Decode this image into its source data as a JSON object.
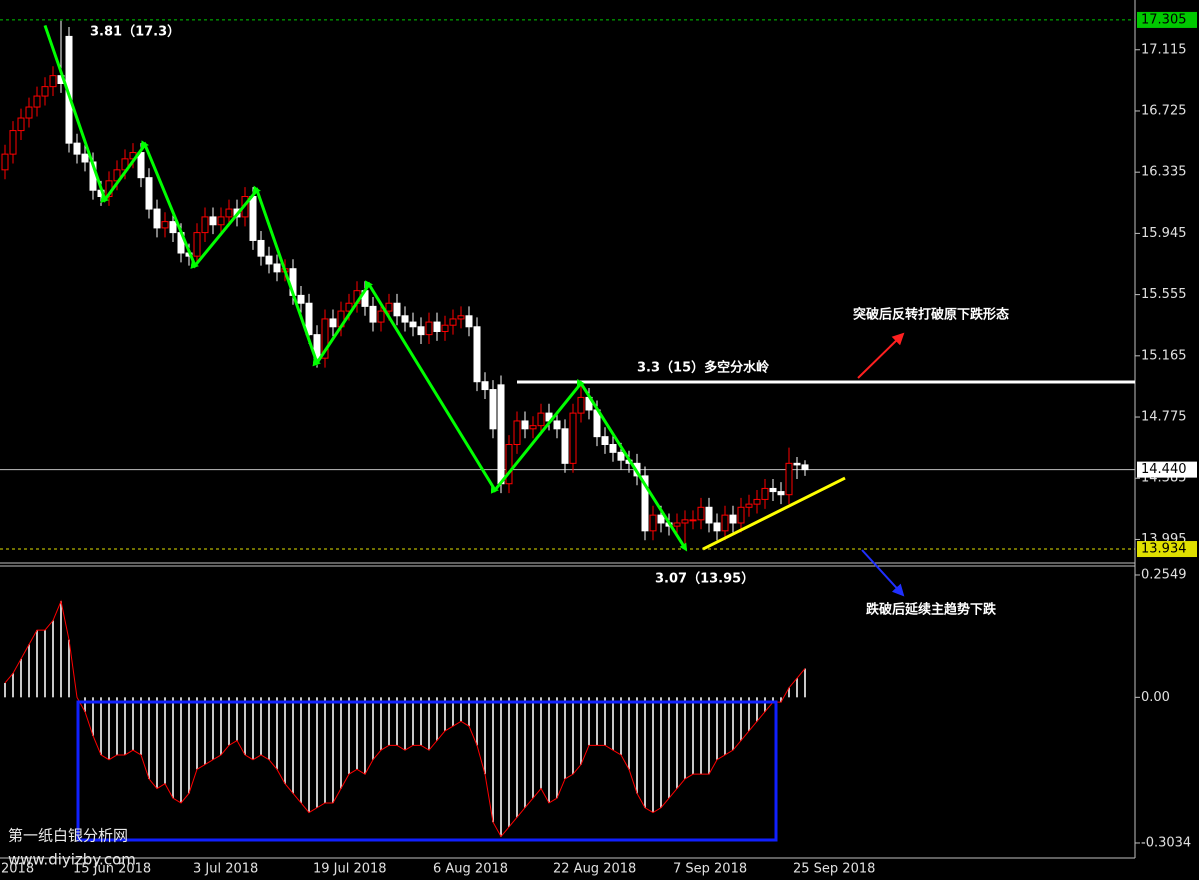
{
  "chart_data": [
    {
      "type": "candlestick",
      "categories": [
        "2018",
        null,
        null,
        null,
        null,
        null,
        null,
        null,
        null,
        "15 Jun 2018",
        null,
        null,
        null,
        null,
        null,
        null,
        null,
        null,
        null,
        null,
        null,
        null,
        null,
        null,
        "3 Jul 2018",
        null,
        null,
        null,
        null,
        null,
        null,
        null,
        null,
        null,
        null,
        null,
        null,
        null,
        null,
        "19 Jul 2018",
        null,
        null,
        null,
        null,
        null,
        null,
        null,
        null,
        null,
        null,
        null,
        null,
        null,
        null,
        "6 Aug 2018",
        null,
        null,
        null,
        null,
        null,
        null,
        null,
        null,
        null,
        null,
        null,
        null,
        null,
        null,
        "22 Aug 2018",
        null,
        null,
        null,
        null,
        null,
        null,
        null,
        null,
        null,
        null,
        null,
        null,
        null,
        null,
        "7 Sep 2018",
        null,
        null,
        null,
        null,
        null,
        null,
        null,
        null,
        null,
        null,
        null,
        null,
        null,
        null,
        "25 Sep 2018",
        null
      ],
      "open": [
        16.35,
        16.45,
        16.6,
        16.68,
        16.75,
        16.82,
        16.88,
        16.95,
        17.2,
        16.52,
        16.45,
        16.4,
        16.22,
        16.18,
        16.28,
        16.35,
        16.42,
        16.46,
        16.3,
        16.1,
        15.98,
        16.02,
        15.95,
        15.82,
        15.8,
        15.95,
        16.05,
        16.0,
        16.05,
        16.1,
        16.05,
        16.18,
        15.9,
        15.8,
        15.75,
        15.7,
        15.72,
        15.55,
        15.5,
        15.3,
        15.15,
        15.4,
        15.35,
        15.45,
        15.5,
        15.58,
        15.48,
        15.38,
        15.45,
        15.5,
        15.42,
        15.38,
        15.35,
        15.3,
        15.38,
        15.32,
        15.36,
        15.4,
        15.42,
        15.35,
        15.0,
        14.95,
        14.98,
        14.35,
        14.6,
        14.75,
        14.7,
        14.72,
        14.8,
        14.75,
        14.7,
        14.48,
        14.8,
        14.9,
        14.82,
        14.65,
        14.6,
        14.55,
        14.5,
        14.48,
        14.4,
        14.05,
        14.15,
        14.1,
        14.08,
        14.1,
        14.12,
        14.12,
        14.2,
        14.1,
        14.05,
        14.15,
        14.1,
        14.2,
        14.22,
        14.25,
        14.32,
        14.3,
        14.28,
        14.48,
        14.47
      ],
      "high": [
        16.51,
        16.66,
        16.74,
        16.81,
        16.88,
        16.94,
        17.01,
        17.3,
        17.26,
        16.58,
        16.51,
        16.46,
        16.28,
        16.34,
        16.41,
        16.48,
        16.52,
        16.52,
        16.36,
        16.16,
        16.08,
        16.08,
        16.01,
        15.88,
        16.01,
        16.11,
        16.11,
        16.11,
        16.16,
        16.16,
        16.24,
        16.24,
        15.96,
        15.86,
        15.81,
        15.78,
        15.78,
        15.61,
        15.56,
        15.36,
        15.46,
        15.46,
        15.51,
        15.56,
        15.64,
        15.64,
        15.54,
        15.51,
        15.56,
        15.56,
        15.48,
        15.44,
        15.41,
        15.44,
        15.44,
        15.42,
        15.46,
        15.48,
        15.48,
        15.41,
        15.06,
        15.01,
        15.04,
        14.66,
        14.81,
        14.81,
        14.78,
        14.86,
        14.86,
        14.81,
        14.76,
        14.86,
        14.99,
        14.96,
        14.88,
        14.71,
        14.66,
        14.61,
        14.56,
        14.54,
        14.46,
        14.21,
        14.21,
        14.16,
        14.16,
        14.18,
        14.18,
        14.26,
        14.26,
        14.16,
        14.21,
        14.21,
        14.26,
        14.28,
        14.31,
        14.38,
        14.38,
        14.36,
        14.58,
        14.52,
        14.5
      ],
      "low": [
        16.29,
        16.39,
        16.54,
        16.62,
        16.69,
        16.76,
        16.82,
        16.84,
        16.46,
        16.39,
        16.34,
        16.16,
        16.12,
        16.12,
        16.22,
        16.29,
        16.36,
        16.24,
        16.04,
        15.92,
        15.92,
        15.89,
        15.76,
        15.74,
        15.74,
        15.89,
        15.94,
        15.94,
        15.99,
        15.99,
        15.99,
        15.84,
        15.74,
        15.69,
        15.64,
        15.64,
        15.49,
        15.44,
        15.24,
        15.09,
        15.09,
        15.29,
        15.29,
        15.39,
        15.44,
        15.42,
        15.32,
        15.32,
        15.39,
        15.36,
        15.32,
        15.29,
        15.24,
        15.24,
        15.26,
        15.26,
        15.3,
        15.34,
        15.29,
        14.94,
        14.89,
        14.64,
        14.29,
        14.29,
        14.54,
        14.64,
        14.64,
        14.66,
        14.69,
        14.64,
        14.42,
        14.42,
        14.74,
        14.76,
        14.59,
        14.54,
        14.49,
        14.44,
        14.42,
        14.34,
        13.99,
        13.99,
        14.04,
        14.02,
        14.02,
        13.93,
        14.06,
        14.06,
        14.04,
        13.99,
        13.99,
        14.04,
        14.04,
        14.14,
        14.16,
        14.19,
        14.24,
        14.22,
        14.22,
        14.38,
        14.4
      ],
      "close": [
        16.45,
        16.6,
        16.68,
        16.75,
        16.82,
        16.88,
        16.95,
        16.9,
        16.52,
        16.45,
        16.4,
        16.22,
        16.18,
        16.28,
        16.35,
        16.42,
        16.46,
        16.3,
        16.1,
        15.98,
        16.02,
        15.95,
        15.82,
        15.8,
        15.95,
        16.05,
        16.0,
        16.05,
        16.1,
        16.05,
        16.18,
        15.9,
        15.8,
        15.75,
        15.7,
        15.72,
        15.55,
        15.5,
        15.3,
        15.15,
        15.4,
        15.35,
        15.45,
        15.5,
        15.58,
        15.48,
        15.38,
        15.45,
        15.5,
        15.42,
        15.38,
        15.35,
        15.3,
        15.38,
        15.32,
        15.36,
        15.4,
        15.42,
        15.35,
        15.0,
        14.95,
        14.7,
        14.35,
        14.6,
        14.75,
        14.7,
        14.72,
        14.8,
        14.75,
        14.7,
        14.48,
        14.8,
        14.9,
        14.82,
        14.65,
        14.6,
        14.55,
        14.5,
        14.48,
        14.4,
        14.05,
        14.15,
        14.1,
        14.08,
        14.1,
        14.12,
        14.12,
        14.2,
        14.1,
        14.05,
        14.15,
        14.1,
        14.2,
        14.22,
        14.25,
        14.32,
        14.3,
        14.28,
        14.48,
        14.47,
        14.44
      ],
      "up_color": "#ff0000",
      "down_color": "#ffffff",
      "ylim": [
        13.845,
        17.432
      ],
      "yticks": [
        17.115,
        16.725,
        16.335,
        15.945,
        15.555,
        15.165,
        14.775,
        14.385,
        13.995
      ],
      "hlines": [
        {
          "value": 17.305,
          "color": "#00c800",
          "dash": true
        },
        {
          "value": 14.44,
          "label": "14.440",
          "color": "#c0c0c0",
          "dash": false
        },
        {
          "value": 13.934,
          "color": "#e0e000",
          "dash": true
        }
      ],
      "zigzag": {
        "color": "#00ff00",
        "x": [
          5,
          12.5,
          17.5,
          23.75,
          31.5,
          39,
          45.5,
          61.25,
          72,
          85
        ],
        "y": [
          17.27,
          16.16,
          16.51,
          15.74,
          16.22,
          15.12,
          15.62,
          14.31,
          14.99,
          13.94
        ]
      },
      "lines": [
        {
          "color": "#ffffff",
          "x": [
            64,
            141.25
          ],
          "y": [
            14.998,
            14.998
          ]
        },
        {
          "color": "#ffff00",
          "x": [
            87.25,
            105
          ],
          "y": [
            13.934,
            14.386
          ]
        }
      ]
    },
    {
      "type": "bar",
      "values": [
        0.03,
        0.05,
        0.08,
        0.11,
        0.14,
        0.14,
        0.16,
        0.2,
        0.12,
        0.0,
        -0.03,
        -0.08,
        -0.12,
        -0.13,
        -0.12,
        -0.12,
        -0.11,
        -0.12,
        -0.17,
        -0.19,
        -0.18,
        -0.21,
        -0.22,
        -0.2,
        -0.15,
        -0.14,
        -0.13,
        -0.12,
        -0.1,
        -0.09,
        -0.12,
        -0.13,
        -0.12,
        -0.13,
        -0.15,
        -0.18,
        -0.2,
        -0.22,
        -0.24,
        -0.23,
        -0.22,
        -0.22,
        -0.19,
        -0.16,
        -0.15,
        -0.16,
        -0.13,
        -0.11,
        -0.1,
        -0.1,
        -0.11,
        -0.1,
        -0.1,
        -0.11,
        -0.09,
        -0.07,
        -0.06,
        -0.05,
        -0.06,
        -0.1,
        -0.16,
        -0.26,
        -0.29,
        -0.27,
        -0.25,
        -0.23,
        -0.21,
        -0.19,
        -0.22,
        -0.21,
        -0.17,
        -0.16,
        -0.14,
        -0.1,
        -0.1,
        -0.1,
        -0.11,
        -0.12,
        -0.15,
        -0.2,
        -0.23,
        -0.24,
        -0.23,
        -0.21,
        -0.19,
        -0.17,
        -0.16,
        -0.16,
        -0.16,
        -0.13,
        -0.12,
        -0.11,
        -0.09,
        -0.07,
        -0.05,
        -0.03,
        -0.01,
        -0.01,
        0.02,
        0.04,
        0.06
      ],
      "color": "#c8c8c8",
      "line_color": "#ff0000",
      "ylim": [
        -0.3347,
        0.2736
      ],
      "yticks": [
        0.2549,
        {
          "value": 0,
          "label": "0.00"
        },
        -0.3034
      ]
    }
  ],
  "annotations": [
    "3.81（17.3）",
    "3.3（15）多空分水岭",
    "3.07（13.95）",
    "突破后反转打破原下跌形态",
    "跌破后延续主趋势下跌"
  ],
  "watermark": [
    "第一纸白银分析网",
    "www.diyizby.com"
  ]
}
